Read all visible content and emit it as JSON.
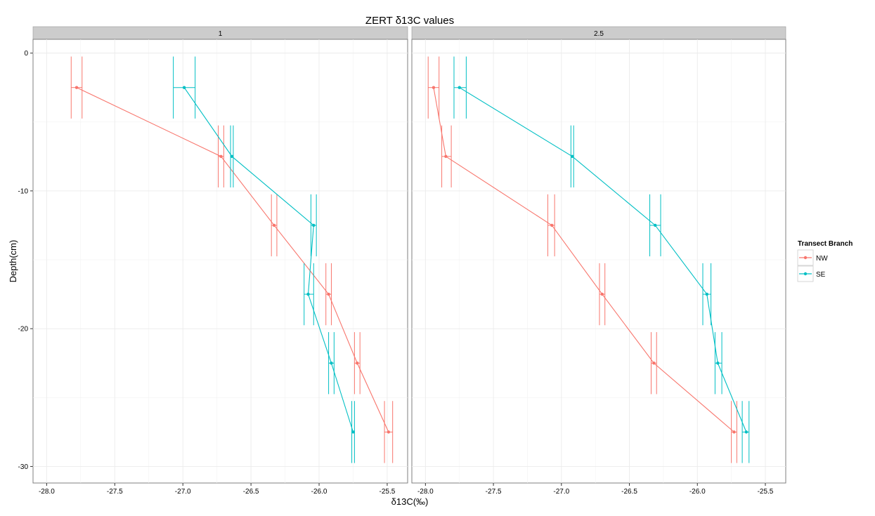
{
  "chart_data": {
    "type": "line",
    "title": "ZERT δ13C values",
    "xlabel": "δ13C(‰)",
    "ylabel": "Depth(cm)",
    "xlim": [
      -28.1,
      -25.35
    ],
    "ylim": [
      -31.2,
      1.0
    ],
    "x_ticks": [
      -28.0,
      -27.5,
      -27.0,
      -26.5,
      -26.0,
      -25.5
    ],
    "x_tick_labels": [
      "-28.0",
      "-27.5",
      "-27.0",
      "-26.5",
      "-26.0",
      "-25.5"
    ],
    "y_ticks": [
      0,
      -10,
      -20,
      -30
    ],
    "y_tick_labels": [
      "0",
      "-10",
      "-20",
      "-30"
    ],
    "grid": true,
    "legend": {
      "title": "Transect Branch",
      "position": "right",
      "entries": [
        {
          "name": "NW",
          "color": "#F8766D"
        },
        {
          "name": "SE",
          "color": "#00BFC4"
        }
      ]
    },
    "panels": [
      {
        "label": "1",
        "series": [
          {
            "name": "NW",
            "color": "#F8766D",
            "points": [
              {
                "x": -27.78,
                "y": -2.5,
                "xmin": -27.82,
                "xmax": -27.74
              },
              {
                "x": -26.72,
                "y": -7.5,
                "xmin": -26.74,
                "xmax": -26.7
              },
              {
                "x": -26.33,
                "y": -12.5,
                "xmin": -26.35,
                "xmax": -26.31
              },
              {
                "x": -25.93,
                "y": -17.5,
                "xmin": -25.95,
                "xmax": -25.91
              },
              {
                "x": -25.72,
                "y": -22.5,
                "xmin": -25.74,
                "xmax": -25.7
              },
              {
                "x": -25.49,
                "y": -27.5,
                "xmin": -25.52,
                "xmax": -25.46
              }
            ]
          },
          {
            "name": "SE",
            "color": "#00BFC4",
            "points": [
              {
                "x": -26.99,
                "y": -2.5,
                "xmin": -27.07,
                "xmax": -26.91
              },
              {
                "x": -26.64,
                "y": -7.5,
                "xmin": -26.65,
                "xmax": -26.63
              },
              {
                "x": -26.04,
                "y": -12.5,
                "xmin": -26.06,
                "xmax": -26.02
              },
              {
                "x": -26.08,
                "y": -17.5,
                "xmin": -26.11,
                "xmax": -26.04
              },
              {
                "x": -25.91,
                "y": -22.5,
                "xmin": -25.93,
                "xmax": -25.89
              },
              {
                "x": -25.75,
                "y": -27.5,
                "xmin": -25.76,
                "xmax": -25.74
              }
            ]
          }
        ]
      },
      {
        "label": "2.5",
        "series": [
          {
            "name": "NW",
            "color": "#F8766D",
            "points": [
              {
                "x": -27.94,
                "y": -2.5,
                "xmin": -27.98,
                "xmax": -27.9
              },
              {
                "x": -27.85,
                "y": -7.5,
                "xmin": -27.88,
                "xmax": -27.81
              },
              {
                "x": -27.07,
                "y": -12.5,
                "xmin": -27.1,
                "xmax": -27.05
              },
              {
                "x": -26.7,
                "y": -17.5,
                "xmin": -26.72,
                "xmax": -26.68
              },
              {
                "x": -26.32,
                "y": -22.5,
                "xmin": -26.34,
                "xmax": -26.3
              },
              {
                "x": -25.73,
                "y": -27.5,
                "xmin": -25.75,
                "xmax": -25.71
              }
            ]
          },
          {
            "name": "SE",
            "color": "#00BFC4",
            "points": [
              {
                "x": -27.75,
                "y": -2.5,
                "xmin": -27.79,
                "xmax": -27.7
              },
              {
                "x": -26.92,
                "y": -7.5,
                "xmin": -26.93,
                "xmax": -26.91
              },
              {
                "x": -26.31,
                "y": -12.5,
                "xmin": -26.35,
                "xmax": -26.27
              },
              {
                "x": -25.93,
                "y": -17.5,
                "xmin": -25.96,
                "xmax": -25.9
              },
              {
                "x": -25.85,
                "y": -22.5,
                "xmin": -25.87,
                "xmax": -25.82
              },
              {
                "x": -25.64,
                "y": -27.5,
                "xmin": -25.67,
                "xmax": -25.62
              }
            ]
          }
        ]
      }
    ]
  }
}
